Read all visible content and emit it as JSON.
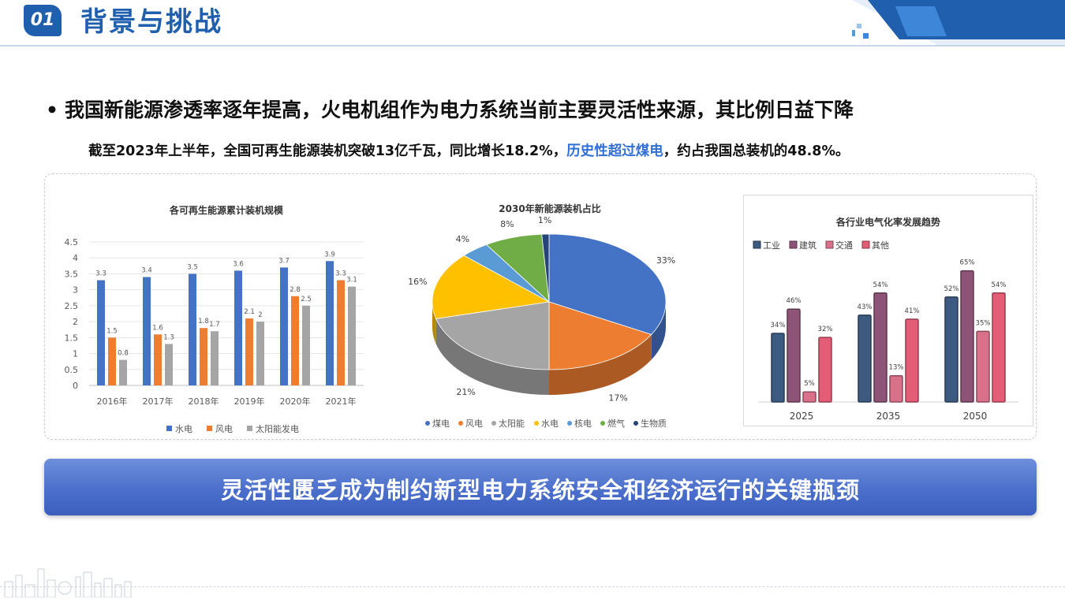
{
  "header": {
    "number": "01",
    "title": "背景与挑战"
  },
  "bullet": {
    "dot": "•",
    "text": "我国新能源渗透率逐年提高，火电机组作为电力系统当前主要灵活性来源，其比例日益下降"
  },
  "subtext": {
    "part1": "截至2023年上半年，全国可再生能源装机突破13亿千瓦，同比增长18.2%，",
    "highlight": "历史性超过煤电",
    "part2": "，约占我国总装机的48.8%。"
  },
  "banner": {
    "text": "灵活性匮乏成为制约新型电力系统安全和经济运行的关键瓶颈"
  },
  "colors": {
    "brand": "#1f5fae",
    "highlight": "#2f6fd6",
    "banner": "#4b6fcb"
  },
  "chart_data": [
    {
      "type": "bar",
      "title": "各可再生能源累计装机规模",
      "categories": [
        "2016年",
        "2017年",
        "2018年",
        "2019年",
        "2020年",
        "2021年"
      ],
      "series": [
        {
          "name": "水电",
          "values": [
            3.3,
            3.4,
            3.5,
            3.6,
            3.7,
            3.9
          ],
          "color": "#4472c4"
        },
        {
          "name": "风电",
          "values": [
            1.5,
            1.6,
            1.8,
            2.1,
            2.8,
            3.3
          ],
          "color": "#ed7d31"
        },
        {
          "name": "太阳能发电",
          "values": [
            0.8,
            1.3,
            1.7,
            2,
            2.5,
            3.1
          ],
          "color": "#a5a5a5"
        }
      ],
      "data_labels": [
        [
          "3.3",
          "3.4",
          "3.5",
          "3.6",
          "3.7",
          "3.9"
        ],
        [
          "1.5",
          "1.6",
          "1.8",
          "2.1",
          "2.8",
          "3.3"
        ],
        [
          "0.8",
          "1.3",
          "1.7",
          "2",
          "2.5",
          "3.1"
        ]
      ],
      "ylim": [
        0,
        4.5
      ],
      "yticks": [
        "0",
        "0.5",
        "1",
        "1.5",
        "2",
        "2.5",
        "3",
        "3.5",
        "4",
        "4.5"
      ],
      "grid": true,
      "legend": "bottom"
    },
    {
      "type": "pie",
      "title": "2030年新能源装机占比",
      "labels": [
        "煤电",
        "风电",
        "太阳能",
        "水电",
        "核电",
        "燃气",
        "生物质"
      ],
      "values": [
        33,
        17,
        21,
        16,
        4,
        8,
        1
      ],
      "value_labels": [
        "33%",
        "17%",
        "21%",
        "16%",
        "4%",
        "8%",
        "1%"
      ],
      "colors": [
        "#4472c4",
        "#ed7d31",
        "#a5a5a5",
        "#ffc000",
        "#5b9bd5",
        "#70ad47",
        "#264478"
      ],
      "style": "3d",
      "legend": "bottom"
    },
    {
      "type": "bar",
      "title": "各行业电气化率发展趋势",
      "categories": [
        "2025",
        "2035",
        "2050"
      ],
      "series": [
        {
          "name": "工业",
          "values": [
            34,
            43,
            52
          ],
          "color": "#3d5a80"
        },
        {
          "name": "建筑",
          "values": [
            46,
            54,
            65
          ],
          "color": "#8e5478"
        },
        {
          "name": "交通",
          "values": [
            5,
            13,
            35
          ],
          "color": "#d9718b"
        },
        {
          "name": "其他",
          "values": [
            32,
            41,
            54
          ],
          "color": "#e35d76"
        }
      ],
      "data_labels": [
        [
          "34%",
          "43%",
          "52%"
        ],
        [
          "46%",
          "54%",
          "65%"
        ],
        [
          "5%",
          "13%",
          "35%"
        ],
        [
          "32%",
          "41%",
          "54%"
        ]
      ],
      "ylim": [
        0,
        75
      ],
      "grid": false,
      "legend": "top-left"
    }
  ]
}
